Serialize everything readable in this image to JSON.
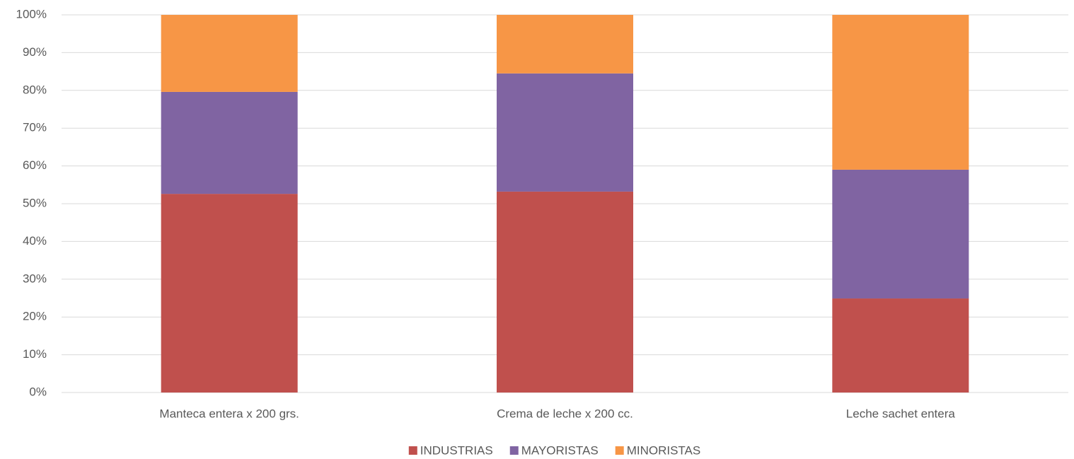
{
  "chart_data": {
    "type": "stacked_bar_100",
    "categories": [
      "Manteca entera x 200 grs.",
      "Crema de leche x 200 cc.",
      "Leche sachet entera"
    ],
    "series": [
      {
        "name": "INDUSTRIAS",
        "color": "#c0504d",
        "values": [
          52.6,
          53.2,
          24.9
        ]
      },
      {
        "name": "MAYORISTAS",
        "color": "#8064a2",
        "values": [
          27.0,
          31.3,
          34.1
        ]
      },
      {
        "name": "MINORISTAS",
        "color": "#f79646",
        "values": [
          20.4,
          15.5,
          41.0
        ]
      }
    ],
    "ylim": [
      0,
      100
    ],
    "yticks": [
      {
        "value": 0,
        "label": "0%"
      },
      {
        "value": 10,
        "label": "10%"
      },
      {
        "value": 20,
        "label": "20%"
      },
      {
        "value": 30,
        "label": "30%"
      },
      {
        "value": 40,
        "label": "40%"
      },
      {
        "value": 50,
        "label": "50%"
      },
      {
        "value": 60,
        "label": "60%"
      },
      {
        "value": 70,
        "label": "70%"
      },
      {
        "value": 80,
        "label": "80%"
      },
      {
        "value": 90,
        "label": "90%"
      },
      {
        "value": 100,
        "label": "100%"
      }
    ],
    "grid": true,
    "legend": "bottom"
  }
}
